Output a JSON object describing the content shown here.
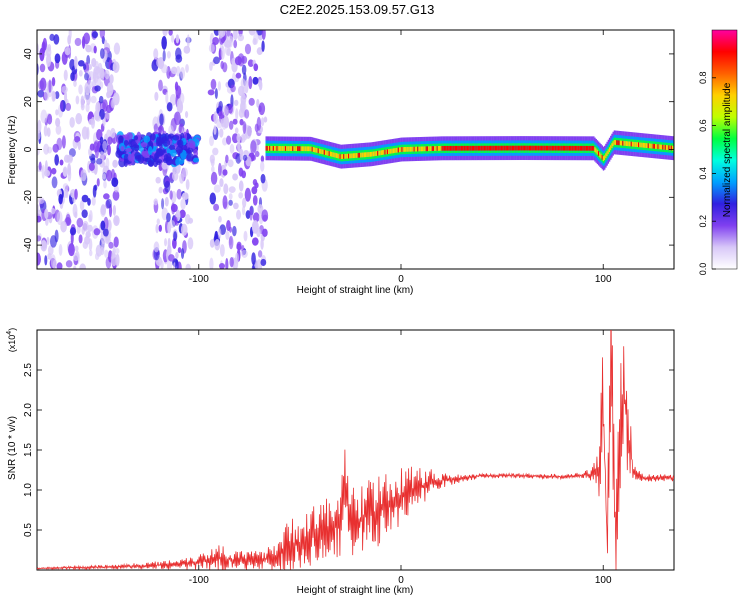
{
  "title": "C2E2.2025.153.09.57.G13",
  "chart_data": [
    {
      "type": "heatmap",
      "xlabel": "Height of straight line (km)",
      "ylabel": "Frequency (Hz)",
      "xlim": [
        -180,
        135
      ],
      "ylim": [
        -50,
        50
      ],
      "xticks": [
        -100,
        0,
        100
      ],
      "yticks": [
        -40,
        -20,
        0,
        20,
        40
      ],
      "colorbar": {
        "label": "Normalized spectral amplitude",
        "range": [
          0,
          1
        ],
        "ticks": [
          "0.0",
          "0.2",
          "0.4",
          "0.6",
          "0.8"
        ],
        "colors": [
          "#ffffff",
          "#d8c8f8",
          "#8040f0",
          "#3020e0",
          "#00a0ff",
          "#00ffe0",
          "#00ff40",
          "#c0ff00",
          "#ffd000",
          "#ff6000",
          "#ff0000",
          "#ff00a0"
        ]
      },
      "noise_regions_km": [
        [
          -180,
          -140
        ],
        [
          -122,
          -104
        ],
        [
          -94,
          -67
        ]
      ],
      "ridge": {
        "x_start": -67,
        "x_end": 135,
        "freq_hz": [
          {
            "x": -67,
            "y": 0.5
          },
          {
            "x": -45,
            "y": 0.3
          },
          {
            "x": -30,
            "y": -3
          },
          {
            "x": -15,
            "y": -2
          },
          {
            "x": 0,
            "y": 0
          },
          {
            "x": 20,
            "y": 0.5
          },
          {
            "x": 60,
            "y": 0.6
          },
          {
            "x": 95,
            "y": 0.5
          },
          {
            "x": 100,
            "y": -4
          },
          {
            "x": 105,
            "y": 3
          },
          {
            "x": 135,
            "y": 0.5
          }
        ]
      }
    },
    {
      "type": "line",
      "xlabel": "Height of straight line (km)",
      "ylabel": "SNR (10 * v/v)",
      "scale_label": "(x10",
      "scale_exp": "4",
      "xlim": [
        -180,
        135
      ],
      "ylim": [
        0,
        3.0
      ],
      "xticks": [
        -100,
        0,
        100
      ],
      "yticks": [
        0.5,
        1.0,
        1.5,
        2.0,
        2.5
      ],
      "color": "#e83030",
      "series": [
        {
          "x": [
            -180,
            -160,
            -140,
            -120,
            -100,
            -90,
            -80,
            -70,
            -60,
            -55,
            -50,
            -45,
            -40,
            -35,
            -30,
            -28,
            -25,
            -20,
            -15,
            -10,
            -5,
            0,
            5,
            10,
            20,
            30,
            40,
            50,
            60,
            70,
            80,
            90,
            95,
            98,
            100,
            102,
            104,
            106,
            108,
            110,
            115,
            120,
            135
          ],
          "y": [
            0.02,
            0.03,
            0.04,
            0.06,
            0.1,
            0.15,
            0.12,
            0.12,
            0.2,
            0.3,
            0.35,
            0.4,
            0.45,
            0.5,
            0.55,
            1.2,
            0.6,
            0.65,
            0.7,
            0.75,
            0.85,
            0.9,
            1.0,
            1.05,
            1.12,
            1.15,
            1.18,
            1.18,
            1.18,
            1.17,
            1.17,
            1.18,
            1.2,
            1.3,
            2.1,
            0.3,
            2.9,
            0.2,
            1.6,
            2.2,
            1.2,
            1.15,
            1.15
          ],
          "spread": [
            0.01,
            0.02,
            0.03,
            0.05,
            0.1,
            0.2,
            0.12,
            0.12,
            0.25,
            0.35,
            0.35,
            0.4,
            0.4,
            0.45,
            0.5,
            0.4,
            0.45,
            0.45,
            0.45,
            0.45,
            0.35,
            0.4,
            0.3,
            0.25,
            0.1,
            0.05,
            0.03,
            0.03,
            0.03,
            0.03,
            0.03,
            0.04,
            0.1,
            0.4,
            0.8,
            0.5,
            1.0,
            0.5,
            0.8,
            0.9,
            0.15,
            0.05,
            0.05
          ]
        }
      ]
    }
  ]
}
